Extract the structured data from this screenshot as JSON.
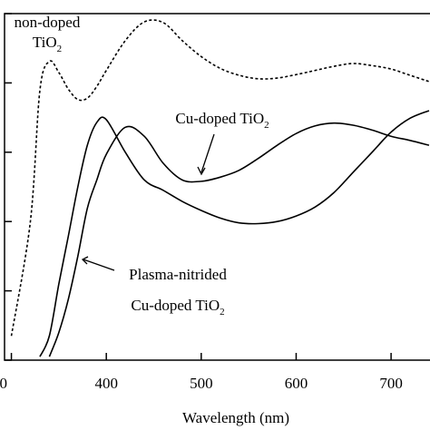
{
  "chart_data": {
    "type": "line",
    "x_label": "Wavelength (nm)",
    "x": [
      300,
      320,
      330,
      340,
      350,
      360,
      370,
      380,
      390,
      400,
      420,
      440,
      460,
      480,
      500,
      520,
      540,
      560,
      580,
      600,
      620,
      640,
      660,
      680,
      700,
      720,
      740
    ],
    "series": [
      {
        "color": "#000000",
        "dash": true,
        "values": [
          0.35,
          2.0,
          3.89,
          4.31,
          4.15,
          3.91,
          3.76,
          3.78,
          3.95,
          4.18,
          4.61,
          4.88,
          4.87,
          4.61,
          4.38,
          4.21,
          4.11,
          4.06,
          4.07,
          4.12,
          4.18,
          4.24,
          4.28,
          4.25,
          4.2,
          4.11,
          4.02
        ]
      },
      {
        "color": "#000000",
        "dash": false,
        "values": [
          null,
          null,
          0.05,
          0.35,
          1.1,
          1.79,
          2.5,
          3.1,
          3.43,
          3.47,
          3.0,
          2.6,
          2.45,
          2.29,
          2.16,
          2.05,
          1.98,
          1.97,
          2.0,
          2.08,
          2.21,
          2.42,
          2.71,
          3.0,
          3.29,
          3.49,
          3.6
        ]
      },
      {
        "color": "#000000",
        "dash": false,
        "values": [
          null,
          null,
          null,
          0.05,
          0.4,
          0.88,
          1.5,
          2.19,
          2.6,
          2.97,
          3.36,
          3.23,
          2.84,
          2.6,
          2.58,
          2.64,
          2.74,
          2.91,
          3.1,
          3.27,
          3.38,
          3.42,
          3.39,
          3.32,
          3.23,
          3.17,
          3.1
        ]
      }
    ],
    "annotations": [
      [
        "non-doped",
        "TiO₂"
      ],
      [
        "Cu-doped TiO₂"
      ],
      [
        "Plasma-nitrided",
        "Cu-doped TiO₂"
      ]
    ],
    "xlim": [
      288,
      741
    ],
    "xticks": [
      {
        "value": 300,
        "label": "0"
      },
      400,
      500,
      600,
      700
    ],
    "ylim": [
      0,
      5
    ],
    "yticks": [
      0,
      1,
      2,
      3,
      4,
      5
    ]
  }
}
